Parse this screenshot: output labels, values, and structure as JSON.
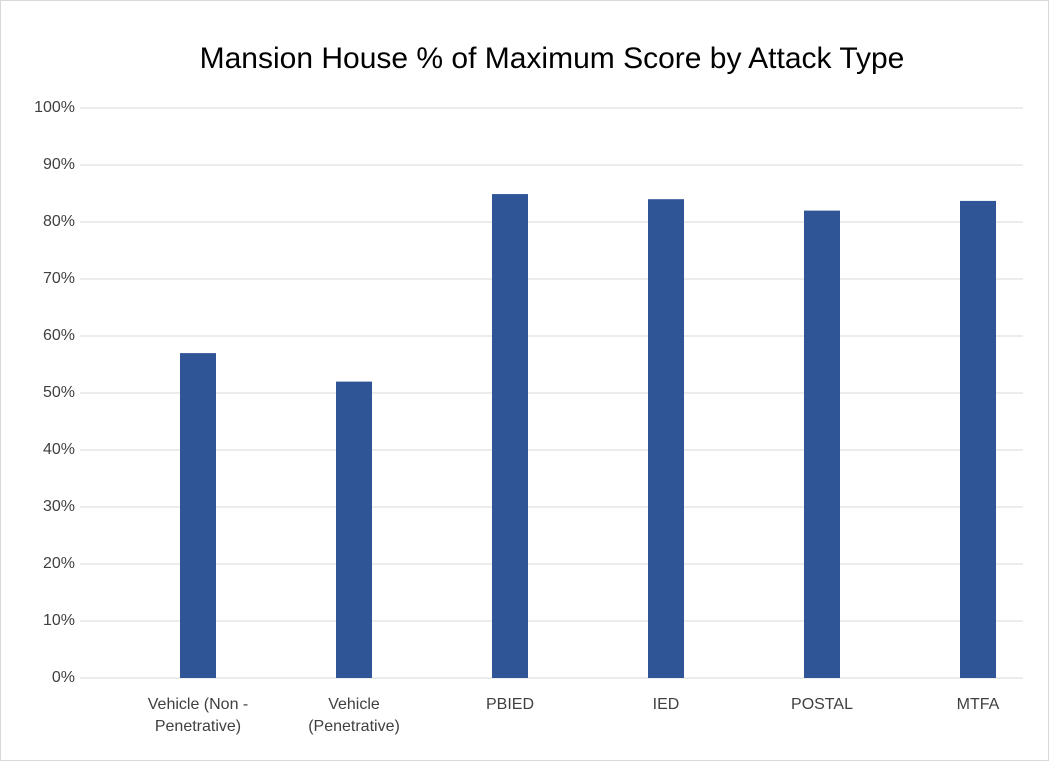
{
  "chart_data": {
    "type": "bar",
    "title": "Mansion House % of Maximum Score by Attack Type",
    "categories": [
      "Vehicle (Non - Penetrative)",
      "Vehicle (Penetrative)",
      "PBIED",
      "IED",
      "POSTAL",
      "MTFA"
    ],
    "values": [
      57,
      52,
      84.9,
      84,
      82,
      83.7
    ],
    "color": "#2f5597",
    "ylim": [
      0,
      100
    ],
    "yticks": [
      {
        "value": 0,
        "label": "0%"
      },
      {
        "value": 10,
        "label": "10%"
      },
      {
        "value": 20,
        "label": "20%"
      },
      {
        "value": 30,
        "label": "30%"
      },
      {
        "value": 40,
        "label": "40%"
      },
      {
        "value": 50,
        "label": "50%"
      },
      {
        "value": 60,
        "label": "60%"
      },
      {
        "value": 70,
        "label": "70%"
      },
      {
        "value": 80,
        "label": "80%"
      },
      {
        "value": 90,
        "label": "90%"
      },
      {
        "value": 100,
        "label": "100%"
      }
    ],
    "grid": true
  }
}
